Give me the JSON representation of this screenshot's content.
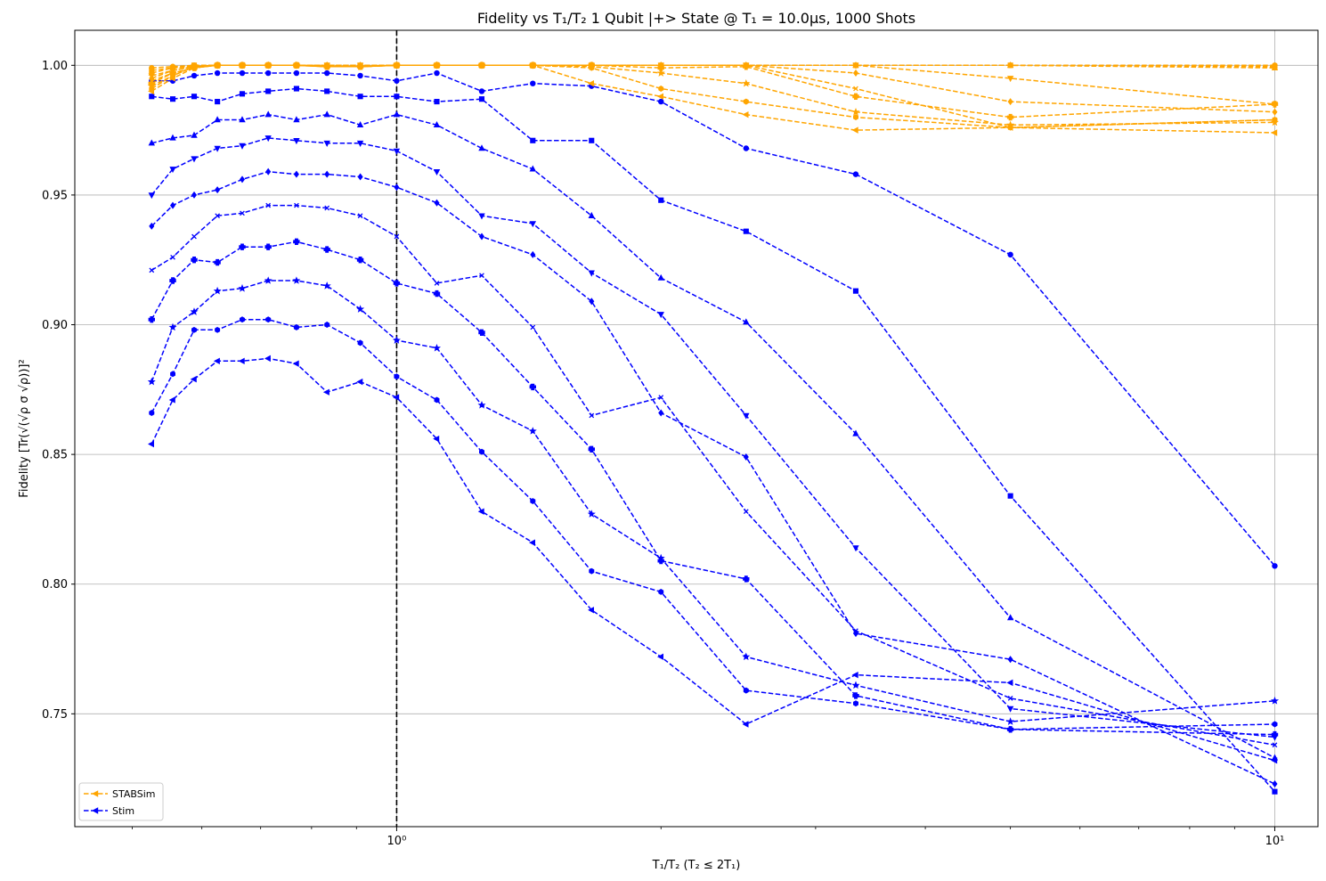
{
  "chart_data": {
    "type": "line",
    "title": "Fidelity vs T₁/T₂ 1 Qubit |+> State @ T₁ = 10.0μs, 1000 Shots",
    "xlabel": "T₁/T₂ (T₂ ≤ 2T₁)",
    "ylabel": "Fidelity [Tr(√(√ρ σ √ρ))]²",
    "xscale": "log",
    "xlim": [
      0.43,
      11.2
    ],
    "ylim": [
      0.7065,
      1.0135
    ],
    "grid": true,
    "legend_position": "lower-left",
    "reference_line": {
      "x": 1.0,
      "style": "dashed",
      "color": "#000000"
    },
    "x_ticks": [
      {
        "value": 1,
        "label": "10⁰"
      },
      {
        "value": 10,
        "label": "10¹"
      }
    ],
    "y_ticks": [
      {
        "value": 0.75,
        "label": "0.75"
      },
      {
        "value": 0.8,
        "label": "0.80"
      },
      {
        "value": 0.85,
        "label": "0.85"
      },
      {
        "value": 0.9,
        "label": "0.90"
      },
      {
        "value": 0.95,
        "label": "0.95"
      },
      {
        "value": 1.0,
        "label": "1.00"
      }
    ],
    "x": [
      0.526,
      0.556,
      0.588,
      0.625,
      0.667,
      0.714,
      0.769,
      0.833,
      0.909,
      1.0,
      1.111,
      1.25,
      1.429,
      1.667,
      2.0,
      2.5,
      3.333,
      5.0,
      10.0
    ],
    "series": [
      {
        "group": "STABSim",
        "color": "#ffa500",
        "marker": "circle",
        "values": [
          0.999,
          0.9995,
          1.0,
          1.0,
          1.0,
          1.0,
          1.0,
          1.0,
          1.0,
          1.0,
          1.0,
          1.0,
          1.0,
          1.0,
          1.0,
          1.0,
          1.0,
          1.0,
          1.0
        ]
      },
      {
        "group": "STABSim",
        "color": "#ffa500",
        "marker": "square",
        "values": [
          0.998,
          0.999,
          1.0,
          1.0,
          1.0,
          1.0,
          1.0,
          1.0,
          1.0,
          1.0,
          1.0,
          1.0,
          1.0,
          1.0,
          1.0,
          1.0,
          1.0,
          1.0,
          0.9995
        ]
      },
      {
        "group": "STABSim",
        "color": "#ffa500",
        "marker": "triangle-up",
        "values": [
          0.997,
          0.999,
          0.9995,
          1.0,
          1.0,
          1.0,
          1.0,
          1.0,
          1.0,
          1.0,
          1.0,
          1.0,
          1.0,
          1.0,
          1.0,
          1.0,
          1.0,
          1.0,
          0.999
        ]
      },
      {
        "group": "STABSim",
        "color": "#ffa500",
        "marker": "triangle-down",
        "values": [
          0.996,
          0.998,
          0.9995,
          1.0,
          1.0,
          1.0,
          1.0,
          1.0,
          1.0,
          1.0,
          1.0,
          1.0,
          1.0,
          1.0,
          1.0,
          1.0,
          1.0,
          0.995,
          0.985
        ]
      },
      {
        "group": "STABSim",
        "color": "#ffa500",
        "marker": "diamond",
        "values": [
          0.995,
          0.998,
          0.9995,
          1.0,
          1.0,
          1.0,
          1.0,
          1.0,
          0.9995,
          1.0,
          1.0,
          1.0,
          1.0,
          1.0,
          1.0,
          1.0,
          0.997,
          0.986,
          0.982
        ]
      },
      {
        "group": "STABSim",
        "color": "#ffa500",
        "marker": "x",
        "values": [
          0.994,
          0.997,
          0.999,
          1.0,
          1.0,
          1.0,
          1.0,
          0.9995,
          0.9995,
          1.0,
          1.0,
          1.0,
          1.0,
          1.0,
          1.0,
          1.0,
          0.991,
          0.976,
          0.979
        ]
      },
      {
        "group": "STABSim",
        "color": "#ffa500",
        "marker": "plus",
        "values": [
          0.993,
          0.997,
          0.999,
          1.0,
          1.0,
          1.0,
          1.0,
          0.9995,
          0.9995,
          1.0,
          1.0,
          1.0,
          1.0,
          1.0,
          0.999,
          0.9995,
          0.988,
          0.98,
          0.985
        ]
      },
      {
        "group": "STABSim",
        "color": "#ffa500",
        "marker": "star",
        "values": [
          0.992,
          0.996,
          0.9995,
          1.0,
          1.0,
          1.0,
          1.0,
          0.9995,
          0.9995,
          1.0,
          1.0,
          1.0,
          1.0,
          0.9995,
          0.997,
          0.993,
          0.982,
          0.977,
          0.978
        ]
      },
      {
        "group": "STABSim",
        "color": "#ffa500",
        "marker": "hexagon",
        "values": [
          0.991,
          0.996,
          0.9995,
          1.0,
          1.0,
          1.0,
          1.0,
          0.9995,
          0.9995,
          1.0,
          1.0,
          1.0,
          1.0,
          0.999,
          0.991,
          0.986,
          0.98,
          0.976,
          0.979
        ]
      },
      {
        "group": "STABSim",
        "color": "#ffa500",
        "marker": "triangle-left",
        "values": [
          0.99,
          0.995,
          0.999,
          1.0,
          1.0,
          1.0,
          1.0,
          0.9995,
          0.9995,
          1.0,
          1.0,
          1.0,
          1.0,
          0.993,
          0.988,
          0.981,
          0.975,
          0.976,
          0.974
        ]
      },
      {
        "group": "Stim",
        "color": "#0000ff",
        "marker": "circle",
        "values": [
          0.994,
          0.994,
          0.996,
          0.997,
          0.997,
          0.997,
          0.997,
          0.997,
          0.996,
          0.994,
          0.997,
          0.99,
          0.993,
          0.992,
          0.986,
          0.968,
          0.958,
          0.927,
          0.807
        ]
      },
      {
        "group": "Stim",
        "color": "#0000ff",
        "marker": "square",
        "values": [
          0.988,
          0.987,
          0.988,
          0.986,
          0.989,
          0.99,
          0.991,
          0.99,
          0.988,
          0.988,
          0.986,
          0.987,
          0.971,
          0.971,
          0.948,
          0.936,
          0.913,
          0.834,
          0.72
        ]
      },
      {
        "group": "Stim",
        "color": "#0000ff",
        "marker": "triangle-up",
        "values": [
          0.97,
          0.972,
          0.973,
          0.979,
          0.979,
          0.981,
          0.979,
          0.981,
          0.977,
          0.981,
          0.977,
          0.968,
          0.96,
          0.942,
          0.918,
          0.901,
          0.858,
          0.787,
          0.733
        ]
      },
      {
        "group": "Stim",
        "color": "#0000ff",
        "marker": "triangle-down",
        "values": [
          0.95,
          0.96,
          0.964,
          0.968,
          0.969,
          0.972,
          0.971,
          0.97,
          0.97,
          0.967,
          0.959,
          0.942,
          0.939,
          0.92,
          0.904,
          0.865,
          0.814,
          0.752,
          0.741
        ]
      },
      {
        "group": "Stim",
        "color": "#0000ff",
        "marker": "diamond",
        "values": [
          0.938,
          0.946,
          0.95,
          0.952,
          0.956,
          0.959,
          0.958,
          0.958,
          0.957,
          0.953,
          0.947,
          0.934,
          0.927,
          0.909,
          0.866,
          0.849,
          0.781,
          0.771,
          0.723
        ]
      },
      {
        "group": "Stim",
        "color": "#0000ff",
        "marker": "x",
        "values": [
          0.921,
          0.926,
          0.934,
          0.942,
          0.943,
          0.946,
          0.946,
          0.945,
          0.942,
          0.934,
          0.916,
          0.919,
          0.899,
          0.865,
          0.872,
          0.828,
          0.782,
          0.756,
          0.738
        ]
      },
      {
        "group": "Stim",
        "color": "#0000ff",
        "marker": "plus",
        "values": [
          0.902,
          0.917,
          0.925,
          0.924,
          0.93,
          0.93,
          0.932,
          0.929,
          0.925,
          0.916,
          0.912,
          0.897,
          0.876,
          0.852,
          0.809,
          0.802,
          0.757,
          0.744,
          0.742
        ]
      },
      {
        "group": "Stim",
        "color": "#0000ff",
        "marker": "star",
        "values": [
          0.878,
          0.899,
          0.905,
          0.913,
          0.914,
          0.917,
          0.917,
          0.915,
          0.906,
          0.894,
          0.891,
          0.869,
          0.859,
          0.827,
          0.81,
          0.772,
          0.761,
          0.747,
          0.755
        ]
      },
      {
        "group": "Stim",
        "color": "#0000ff",
        "marker": "hexagon",
        "values": [
          0.866,
          0.881,
          0.898,
          0.898,
          0.902,
          0.902,
          0.899,
          0.9,
          0.893,
          0.88,
          0.871,
          0.851,
          0.832,
          0.805,
          0.797,
          0.759,
          0.754,
          0.744,
          0.746
        ]
      },
      {
        "group": "Stim",
        "color": "#0000ff",
        "marker": "triangle-left",
        "values": [
          0.854,
          0.871,
          0.879,
          0.886,
          0.886,
          0.887,
          0.885,
          0.874,
          0.878,
          0.872,
          0.856,
          0.828,
          0.816,
          0.79,
          0.772,
          0.746,
          0.765,
          0.762,
          0.732
        ]
      }
    ],
    "legend": [
      {
        "label": "STABSim",
        "color": "#ffa500",
        "marker": "triangle-left"
      },
      {
        "label": "Stim",
        "color": "#0000ff",
        "marker": "triangle-left"
      }
    ]
  }
}
